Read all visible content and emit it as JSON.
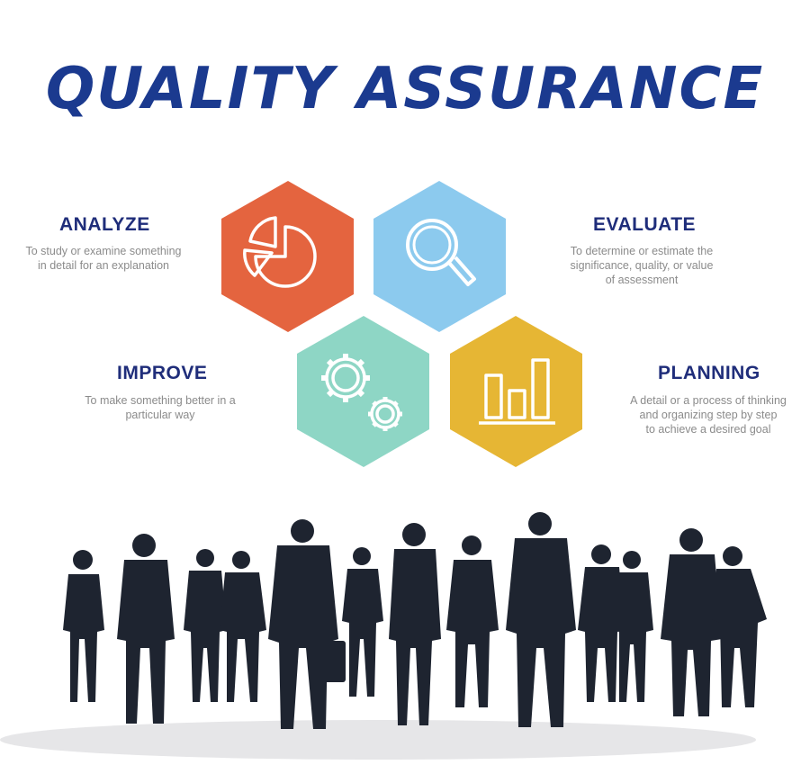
{
  "title": "QUALITY ASSURANCE",
  "colors": {
    "title": "#1b3a8f",
    "heading": "#1f2d7a",
    "analyze": "#e4643f",
    "evaluate": "#8ccaee",
    "improve": "#8ed6c5",
    "planning": "#e6b634",
    "silhouette": "#1e2430"
  },
  "sections": {
    "analyze": {
      "heading": "ANALYZE",
      "desc1": "To study or examine something",
      "desc2": "in detail for an explanation",
      "icon": "pie-chart-icon"
    },
    "evaluate": {
      "heading": "EVALUATE",
      "desc1": "To determine or estimate the",
      "desc2": "significance, quality, or value",
      "desc3": "of assessment",
      "icon": "magnifier-icon"
    },
    "improve": {
      "heading": "IMPROVE",
      "desc1": "To make something better in a",
      "desc2": "particular way",
      "icon": "gears-icon"
    },
    "planning": {
      "heading": "PLANNING",
      "desc1": "A detail or a process of thinking",
      "desc2": "and organizing step by step",
      "desc3": "to achieve a desired goal",
      "icon": "bar-chart-icon"
    }
  }
}
